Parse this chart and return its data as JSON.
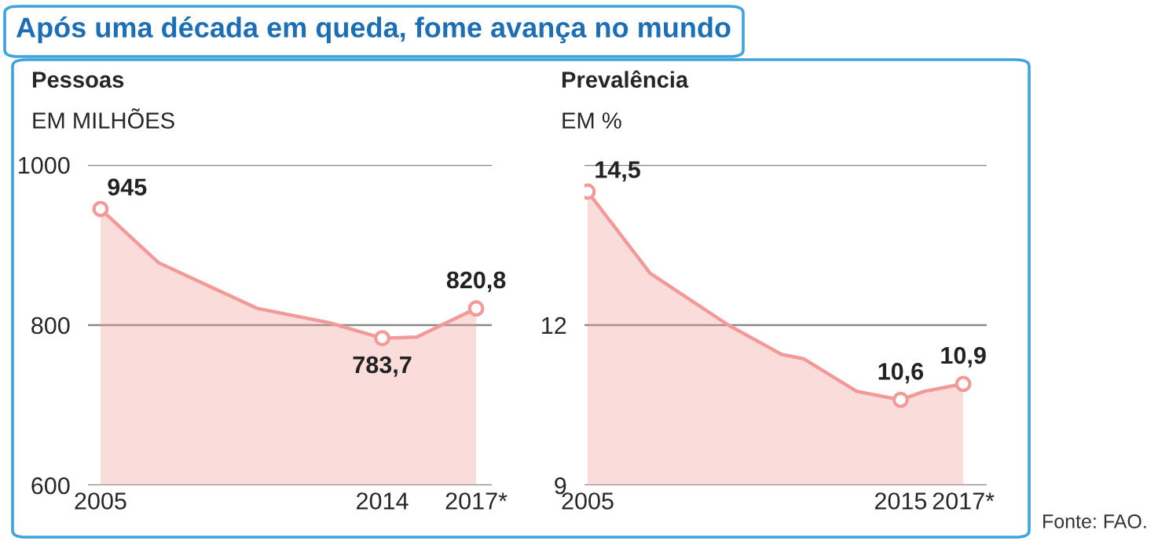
{
  "chart_data": [
    {
      "type": "area",
      "title": "Pessoas",
      "subtitle": "EM MILHÕES",
      "annotations": [
        "Após uma década em queda, fome avança no mundo"
      ],
      "x": [
        2005,
        2006.85,
        2010,
        2012.3,
        2014,
        2015.1,
        2017
      ],
      "series": [
        {
          "color": "#f19a98",
          "values": [
            945,
            878,
            821,
            803,
            783.7,
            785,
            820.8
          ],
          "value_labels": [
            "945",
            null,
            null,
            null,
            "783,7",
            null,
            "820,8"
          ]
        }
      ],
      "xlim": [
        2004.6,
        2017.5
      ],
      "xticks": [
        2005,
        2014,
        {
          "value": 2017,
          "label": "2017*"
        }
      ],
      "ylim": [
        600,
        1000
      ],
      "yticks": [
        600,
        800,
        1000
      ],
      "grid": "y",
      "legend": false
    },
    {
      "type": "area",
      "title": "Prevalência",
      "subtitle": "EM %",
      "annotations": [
        "Fonte: FAO."
      ],
      "x": [
        2005,
        2007,
        2009.5,
        2011.2,
        2011.9,
        2013.6,
        2015,
        2015.75,
        2017
      ],
      "series": [
        {
          "color": "#f19a98",
          "values": [
            14.5,
            12.97,
            12.0,
            11.45,
            11.37,
            10.76,
            10.6,
            10.76,
            10.9
          ],
          "value_labels": [
            "14,5",
            null,
            null,
            null,
            null,
            null,
            "10,6",
            null,
            "10,9"
          ]
        }
      ],
      "xlim": [
        2004.9,
        2017.75
      ],
      "xticks": [
        2005,
        2015,
        {
          "value": 2017,
          "label": "2017*"
        }
      ],
      "ylim": [
        9,
        15
      ],
      "yticks": [
        9,
        12,
        {
          "value": 15,
          "label": null
        }
      ],
      "grid": "y",
      "legend": false
    }
  ]
}
